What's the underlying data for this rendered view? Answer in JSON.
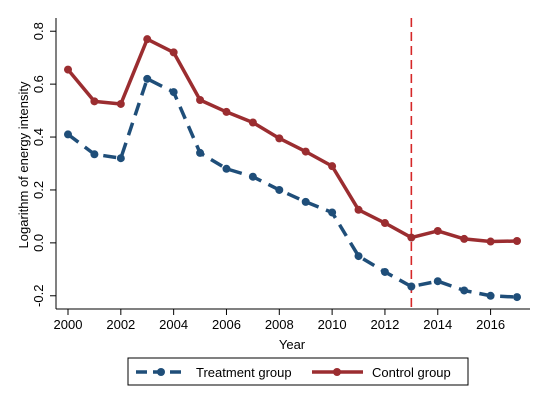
{
  "chart_data": {
    "type": "line",
    "xlabel": "Year",
    "ylabel": "Logarithm of energy intensity",
    "xlim": [
      2000,
      2017
    ],
    "ylim": [
      -0.25,
      0.85
    ],
    "xticks": [
      "2000",
      "2002",
      "2004",
      "2006",
      "2008",
      "2010",
      "2012",
      "2014",
      "2016"
    ],
    "yticks": [
      "-0.2",
      "0.0",
      "0.2",
      "0.4",
      "0.6",
      "0.8"
    ],
    "grid": false,
    "legend_position": "bottom",
    "vline": {
      "x": 2013,
      "color": "#d62728",
      "style": "dashed"
    },
    "x": [
      2000,
      2001,
      2002,
      2003,
      2004,
      2005,
      2006,
      2007,
      2008,
      2009,
      2010,
      2011,
      2012,
      2013,
      2014,
      2015,
      2016,
      2017
    ],
    "series": [
      {
        "name": "Treatment group",
        "color": "#1f4e79",
        "style": "dashed",
        "values": [
          0.41,
          0.335,
          0.32,
          0.62,
          0.57,
          0.34,
          0.28,
          0.25,
          0.2,
          0.155,
          0.115,
          -0.05,
          -0.11,
          -0.165,
          -0.145,
          -0.18,
          -0.2,
          -0.205
        ]
      },
      {
        "name": "Control group",
        "color": "#9b2d30",
        "style": "solid",
        "values": [
          0.655,
          0.535,
          0.525,
          0.77,
          0.72,
          0.54,
          0.495,
          0.455,
          0.395,
          0.345,
          0.29,
          0.125,
          0.075,
          0.02,
          0.045,
          0.015,
          0.005,
          0.007
        ]
      }
    ]
  }
}
